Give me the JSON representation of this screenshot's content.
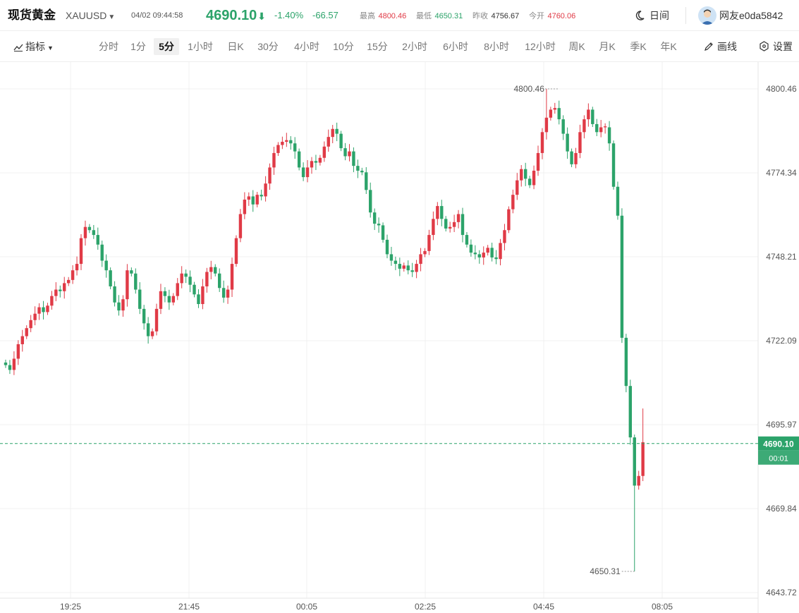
{
  "header": {
    "title": "现货黄金",
    "symbol": "XAUUSD",
    "datetime": "04/02 09:44:58",
    "price": "4690.10",
    "change_pct": "-1.40%",
    "change_amt": "-66.57",
    "high_label": "最高",
    "high_value": "4800.46",
    "low_label": "最低",
    "low_value": "4650.31",
    "prev_close_label": "昨收",
    "prev_close_value": "4756.67",
    "open_label": "今开",
    "open_value": "4760.06",
    "theme_label": "日间",
    "username": "网友e0da5842"
  },
  "toolbar": {
    "indicators_label": "指标",
    "periods": [
      "分时",
      "1分",
      "5分",
      "1小时",
      "日K",
      "30分",
      "4小时",
      "10分",
      "15分",
      "2小时",
      "6小时",
      "8小时",
      "12小时",
      "周K",
      "月K",
      "季K",
      "年K"
    ],
    "active_period": "5分",
    "draw_label": "画线",
    "settings_label": "设置"
  },
  "colors": {
    "up": "#e03a46",
    "down": "#2ca36a",
    "grid": "#f1f1f1",
    "axis_text": "#555555"
  },
  "chart_data": {
    "type": "candlestick",
    "y_ticks": [
      4800.46,
      4774.34,
      4748.21,
      4722.09,
      4695.97,
      4669.84,
      4643.72
    ],
    "y_tick_labels": [
      "4800.46",
      "4774.34",
      "4748.21",
      "4722.09",
      "4695.97",
      "4669.84",
      "4643.72"
    ],
    "x_tick_labels": [
      "19:25",
      "21:45",
      "00:05",
      "02:25",
      "04:45",
      "08:05"
    ],
    "ylim": [
      4643.72,
      4807.5
    ],
    "high_marker": "4800.46",
    "low_marker": "4650.31",
    "last_price": "4690.10",
    "last_price_label": "4690.10",
    "countdown": "00:01",
    "grid": true,
    "closes": [
      4714.5,
      4713.0,
      4716.5,
      4721.0,
      4723.5,
      4726.0,
      4728.5,
      4730.5,
      4732.5,
      4731.0,
      4733.0,
      4736.0,
      4738.0,
      4737.5,
      4740.0,
      4741.0,
      4744.0,
      4746.0,
      4754.0,
      4757.5,
      4756.5,
      4755.0,
      4752.0,
      4747.0,
      4744.0,
      4739.0,
      4734.0,
      4731.5,
      4735.0,
      4744.0,
      4743.0,
      4738.0,
      4732.0,
      4727.5,
      4723.5,
      4725.0,
      4732.0,
      4737.5,
      4736.0,
      4734.0,
      4736.0,
      4740.0,
      4743.0,
      4742.0,
      4739.5,
      4736.5,
      4733.5,
      4739.0,
      4743.5,
      4745.0,
      4743.0,
      4738.5,
      4735.5,
      4738.0,
      4746.0,
      4754.0,
      4761.5,
      4766.0,
      4767.0,
      4764.5,
      4767.5,
      4767.0,
      4771.0,
      4776.0,
      4780.5,
      4783.0,
      4784.0,
      4784.5,
      4783.5,
      4781.0,
      4776.0,
      4773.0,
      4776.0,
      4778.0,
      4777.5,
      4779.0,
      4782.5,
      4785.5,
      4788.0,
      4786.5,
      4782.0,
      4779.5,
      4781.0,
      4776.5,
      4775.0,
      4774.5,
      4769.0,
      4762.0,
      4758.5,
      4758.0,
      4753.5,
      4749.0,
      4747.0,
      4746.0,
      4744.5,
      4745.5,
      4744.0,
      4743.5,
      4746.0,
      4749.0,
      4750.0,
      4755.0,
      4760.0,
      4764.0,
      4760.0,
      4757.0,
      4757.5,
      4759.0,
      4761.5,
      4755.0,
      4752.0,
      4749.5,
      4749.0,
      4748.0,
      4749.5,
      4751.0,
      4748.0,
      4747.5,
      4752.5,
      4756.5,
      4763.0,
      4767.5,
      4772.0,
      4775.5,
      4772.5,
      4770.5,
      4775.0,
      4780.5,
      4787.0,
      4791.5,
      4794.0,
      4794.5,
      4791.0,
      4786.5,
      4781.0,
      4777.0,
      4780.5,
      4787.0,
      4791.0,
      4794.0,
      4789.5,
      4787.0,
      4788.5,
      4788.5,
      4783.5,
      4770.0,
      4761.0,
      4723.0,
      4708.0,
      4692.0,
      4677.0,
      4680.0,
      4690.5
    ]
  }
}
